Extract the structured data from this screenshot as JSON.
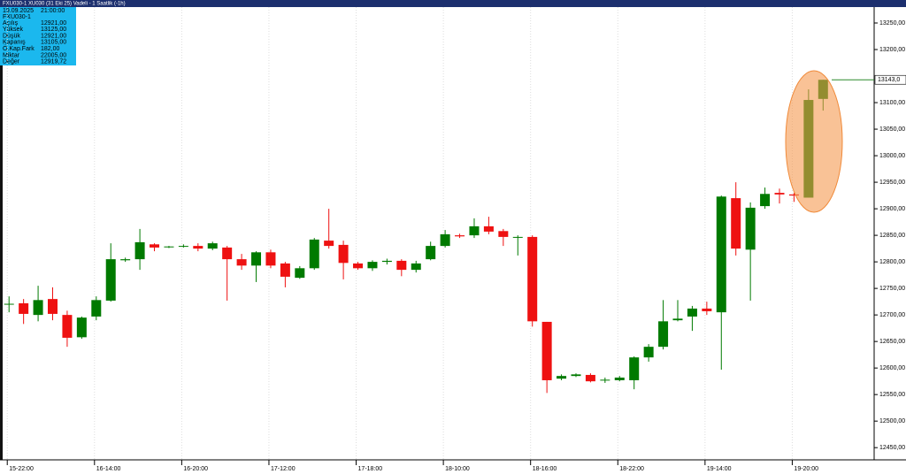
{
  "header": {
    "title": "FXU030-1 XU030 (31 Eki 25) Vadeli - 1 Saatlik (-1h)"
  },
  "info_box": {
    "date": "19.09.2025",
    "time": "21:00:00",
    "symbol": "FXU030-1",
    "rows": [
      [
        "Açılış",
        "12921,00"
      ],
      [
        "Yüksek",
        "13125,00"
      ],
      [
        "Düşük",
        "12921,00"
      ],
      [
        "Kapanış",
        "13105,00"
      ],
      [
        "Ö.Kap.Fark",
        "182,00"
      ],
      [
        "Miktar",
        "22005,00"
      ],
      [
        "Değer",
        "12919,72"
      ]
    ]
  },
  "chart_data": {
    "type": "candlestick",
    "categories": [
      "15-22:00",
      null,
      null,
      null,
      null,
      null,
      "16-14:00",
      null,
      null,
      null,
      null,
      null,
      "16-20:00",
      null,
      null,
      null,
      null,
      null,
      "17-12:00",
      null,
      null,
      null,
      null,
      null,
      "17-18:00",
      null,
      null,
      null,
      null,
      null,
      "18-10:00",
      null,
      null,
      null,
      null,
      null,
      "18-16:00",
      null,
      null,
      null,
      null,
      null,
      "18-22:00",
      null,
      null,
      null,
      null,
      null,
      "19-14:00",
      null,
      null,
      null,
      null,
      null,
      "19-20:00",
      null,
      null
    ],
    "open": [
      12720,
      12722,
      12700,
      12730,
      12700,
      12658,
      12697,
      12727,
      12803,
      12805,
      12833,
      12828,
      12830,
      12830,
      12825,
      12827,
      12805,
      12793,
      12818,
      12797,
      12770,
      12788,
      12840,
      12832,
      12797,
      12788,
      12800,
      12802,
      12785,
      12805,
      12830,
      12850,
      12850,
      12867,
      12858,
      12847,
      12847,
      12687,
      12580,
      12585,
      12587,
      12578,
      12577,
      12577,
      12620,
      12640,
      12690,
      12697,
      12712,
      12705,
      12920,
      12823,
      12905,
      12930,
      12927,
      12921,
      13107
    ],
    "high": [
      12735,
      12730,
      12755,
      12752,
      12708,
      12697,
      12735,
      12835,
      12808,
      12862,
      12835,
      12830,
      12833,
      12835,
      12838,
      12830,
      12815,
      12820,
      12823,
      12800,
      12792,
      12845,
      12900,
      12840,
      12800,
      12803,
      12806,
      12805,
      12802,
      12838,
      12860,
      12853,
      12882,
      12885,
      12862,
      12850,
      12850,
      12687,
      12588,
      12590,
      12590,
      12582,
      12585,
      12622,
      12645,
      12728,
      12728,
      12717,
      12725,
      12925,
      12950,
      12912,
      12940,
      12938,
      12930,
      13125,
      13143
    ],
    "low": [
      12705,
      12683,
      12688,
      12690,
      12640,
      12655,
      12690,
      12725,
      12800,
      12785,
      12820,
      12826,
      12827,
      12820,
      12822,
      12727,
      12785,
      12762,
      12788,
      12752,
      12768,
      12785,
      12825,
      12767,
      12785,
      12783,
      12795,
      12773,
      12780,
      12803,
      12827,
      12845,
      12845,
      12852,
      12830,
      12812,
      12678,
      12553,
      12577,
      12583,
      12573,
      12572,
      12575,
      12560,
      12612,
      12635,
      12688,
      12670,
      12700,
      12597,
      12812,
      12727,
      12900,
      12910,
      12913,
      12921,
      13085
    ],
    "close": [
      12721,
      12702,
      12728,
      12702,
      12657,
      12695,
      12728,
      12805,
      12805,
      12837,
      12827,
      12829,
      12830,
      12825,
      12835,
      12805,
      12793,
      12818,
      12793,
      12772,
      12788,
      12842,
      12830,
      12798,
      12788,
      12800,
      12802,
      12785,
      12797,
      12830,
      12852,
      12848,
      12867,
      12857,
      12847,
      12847,
      12688,
      12577,
      12585,
      12588,
      12575,
      12578,
      12582,
      12620,
      12640,
      12688,
      12693,
      12712,
      12707,
      12923,
      12825,
      12902,
      12928,
      12927,
      12925,
      13105,
      13143
    ],
    "up_color": "#007a00",
    "down_color": "#ee1111",
    "ylim": [
      12427,
      13285
    ],
    "yticks": [
      {
        "value": 12450,
        "label": "12450,00"
      },
      {
        "value": 12500,
        "label": "12500,00"
      },
      {
        "value": 12550,
        "label": "12550,00"
      },
      {
        "value": 12600,
        "label": "12600,00"
      },
      {
        "value": 12650,
        "label": "12650,00"
      },
      {
        "value": 12700,
        "label": "12700,00"
      },
      {
        "value": 12750,
        "label": "12750,00"
      },
      {
        "value": 12800,
        "label": "12800,00"
      },
      {
        "value": 12850,
        "label": "12850,00"
      },
      {
        "value": 12900,
        "label": "12900,00"
      },
      {
        "value": 12950,
        "label": "12950,00"
      },
      {
        "value": 13000,
        "label": "13000,00"
      },
      {
        "value": 13050,
        "label": "13050,00"
      },
      {
        "value": 13100,
        "label": "13100,00"
      },
      {
        "value": 13200,
        "label": "13200,00"
      },
      {
        "value": 13250,
        "label": "13250,00"
      }
    ],
    "last_price": {
      "value": 13143,
      "label": "13143,0"
    }
  }
}
